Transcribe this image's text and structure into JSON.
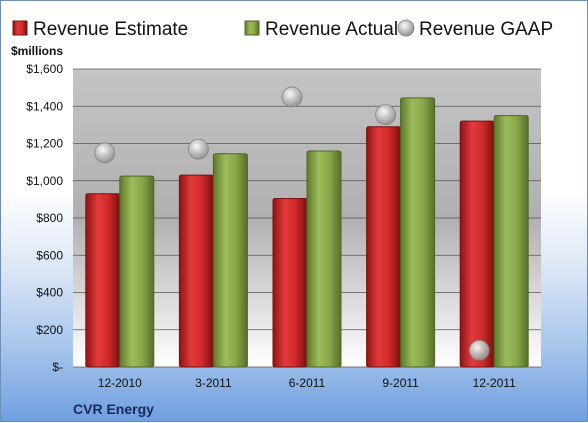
{
  "chart_data": {
    "type": "bar",
    "ylabel": "$millions",
    "company": "CVR Energy",
    "categories": [
      "12-2010",
      "3-2011",
      "6-2011",
      "9-2011",
      "12-2011"
    ],
    "ylim": [
      0,
      1600
    ],
    "yticks": [
      {
        "value": 0,
        "label": "$-"
      },
      {
        "value": 200,
        "label": "$200"
      },
      {
        "value": 400,
        "label": "$400"
      },
      {
        "value": 600,
        "label": "$600"
      },
      {
        "value": 800,
        "label": "$800"
      },
      {
        "value": 1000,
        "label": "$1,000"
      },
      {
        "value": 1200,
        "label": "$1,200"
      },
      {
        "value": 1400,
        "label": "$1,400"
      },
      {
        "value": 1600,
        "label": "$1,600"
      }
    ],
    "legend_position": "top",
    "grid": true,
    "series": [
      {
        "name": "Revenue Estimate",
        "kind": "bar",
        "color": "#cc2a2a",
        "values": [
          930,
          1030,
          905,
          1290,
          1320
        ]
      },
      {
        "name": "Revenue Actual",
        "kind": "bar",
        "color": "#8aa84a",
        "values": [
          1025,
          1145,
          1160,
          1445,
          1350
        ]
      },
      {
        "name": "Revenue GAAP",
        "kind": "marker",
        "color": "#b8b8b8",
        "values": [
          1150,
          1170,
          1450,
          1355,
          90
        ]
      }
    ]
  }
}
